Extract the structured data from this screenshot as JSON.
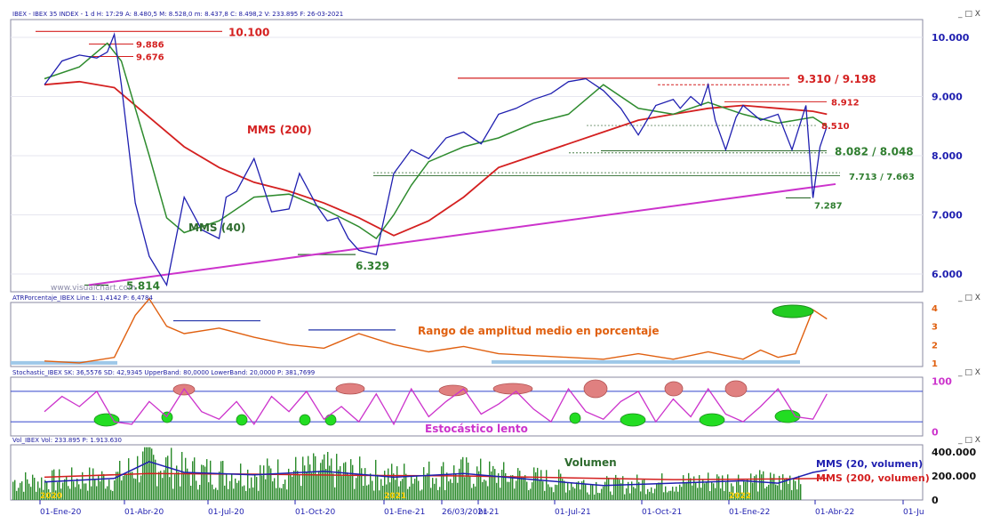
{
  "window": {
    "main_header": "IBEX - IBEX 35 INDEX - 1 d H: 17:29 A: 8.480,5 M: 8.528,0 m: 8.437,8 C: 8.498,2 V: 233.895 F: 26-03-2021",
    "atr_header": "ATRPorcentaje_IBEX Line 1: 1,4142 P: 6,4784",
    "stoch_header": "Stochastic_IBEX SK: 36,5576 SD: 42,9345 UpperBand: 80,0000 LowerBand: 20,0000 P: 381,7699",
    "vol_header": "Vol_IBEX Vol: 233.895 P: 1.913.630",
    "controls": "_ □ X",
    "watermark": "www.visualchart.com",
    "cursor_date": "26/03/2021"
  },
  "colors": {
    "price": "#1f1fb0",
    "mms200": "#d42020",
    "mms40": "#2e8b2e",
    "trend": "#cc33cc",
    "annot_red": "#d42020",
    "annot_green": "#2e7d2e",
    "axis": "#1f1fb0",
    "atr": "#e06010",
    "stoch": "#cc33cc",
    "volume": "#2a8a2a"
  },
  "chart_data": [
    {
      "type": "line",
      "title": "IBEX 35 INDEX (1 d)",
      "x_ticks": [
        "01-Ene-20",
        "01-Abr-20",
        "01-Jul-20",
        "01-Oct-20",
        "01-Ene-21",
        "26/03/2021",
        "br-21",
        "01-Jul-21",
        "01-Oct-21",
        "01-Ene-22",
        "01-Abr-22",
        "01-Ju"
      ],
      "year_marks": [
        "2020",
        "2021",
        "2022"
      ],
      "ylim": [
        5700,
        10300
      ],
      "y_ticks": [
        "6.000",
        "7.000",
        "8.000",
        "9.000",
        "10.000"
      ],
      "series": [
        {
          "name": "IBEX",
          "x": [
            0,
            0.05,
            0.1,
            0.15,
            0.18,
            0.2,
            0.22,
            0.26,
            0.3,
            0.35,
            0.4,
            0.45,
            0.5,
            0.52,
            0.55,
            0.6,
            0.65,
            0.7,
            0.73,
            0.78,
            0.81,
            0.84,
            0.87,
            0.9,
            0.95,
            1.0,
            1.05,
            1.1,
            1.15,
            1.2,
            1.25,
            1.3,
            1.35,
            1.4,
            1.45,
            1.5,
            1.55,
            1.6,
            1.65,
            1.7,
            1.75,
            1.8,
            1.82,
            1.85,
            1.88,
            1.9,
            1.92,
            1.95,
            1.98,
            2.0,
            2.05,
            2.1,
            2.14,
            2.18,
            2.2,
            2.22,
            2.24
          ],
          "values": [
            9200,
            9600,
            9700,
            9650,
            9750,
            10050,
            9200,
            7200,
            6300,
            5814,
            7300,
            6750,
            6600,
            7300,
            7400,
            7950,
            7050,
            7100,
            7700,
            7150,
            6900,
            6950,
            6600,
            6400,
            6329,
            7700,
            8100,
            7950,
            8300,
            8400,
            8200,
            8700,
            8800,
            8950,
            9050,
            9250,
            9300,
            9100,
            8800,
            8350,
            8850,
            8950,
            8800,
            9000,
            8850,
            9200,
            8600,
            8100,
            8650,
            8850,
            8600,
            8700,
            8100,
            8850,
            7287,
            8150,
            8498
          ]
        },
        {
          "name": "MMS (200)",
          "x": [
            0,
            0.1,
            0.2,
            0.3,
            0.4,
            0.5,
            0.6,
            0.7,
            0.8,
            0.9,
            1.0,
            1.1,
            1.2,
            1.3,
            1.4,
            1.5,
            1.6,
            1.7,
            1.8,
            1.9,
            2.0,
            2.1,
            2.2,
            2.24
          ],
          "values": [
            9200,
            9250,
            9150,
            8650,
            8150,
            7800,
            7550,
            7400,
            7200,
            6950,
            6650,
            6900,
            7300,
            7800,
            8000,
            8200,
            8400,
            8600,
            8700,
            8800,
            8850,
            8800,
            8750,
            8700
          ]
        },
        {
          "name": "MMS (40)",
          "x": [
            0,
            0.1,
            0.18,
            0.22,
            0.3,
            0.35,
            0.4,
            0.5,
            0.6,
            0.7,
            0.8,
            0.9,
            0.95,
            1.0,
            1.05,
            1.1,
            1.2,
            1.3,
            1.4,
            1.5,
            1.6,
            1.7,
            1.8,
            1.9,
            2.0,
            2.1,
            2.2,
            2.24
          ],
          "values": [
            9300,
            9500,
            9900,
            9600,
            8000,
            6950,
            6700,
            6900,
            7300,
            7350,
            7100,
            6800,
            6600,
            7000,
            7500,
            7900,
            8150,
            8300,
            8550,
            8700,
            9200,
            8800,
            8700,
            8900,
            8700,
            8550,
            8650,
            8500
          ]
        }
      ],
      "annotations": {
        "r1": "10.100",
        "r2": "9.886",
        "r3": "9.676",
        "r4": "9.310 / 9.198",
        "r5": "8.912",
        "r6": "8.510",
        "g1": "8.082 / 8.048",
        "g2": "7.713 / 7.663",
        "g3": "7.287",
        "g4": "6.329",
        "g5": "5.814",
        "label_mms200": "MMS (200)",
        "label_mms40": "MMS (40)"
      }
    },
    {
      "type": "line",
      "title": "ATRPorcentaje_IBEX",
      "ylim": [
        0.8,
        4.3
      ],
      "y_ticks": [
        "1",
        "2",
        "3",
        "4"
      ],
      "label": "Rango de amplitud medio en porcentaje",
      "series": [
        {
          "name": "ATR %",
          "x": [
            0,
            0.1,
            0.2,
            0.26,
            0.3,
            0.35,
            0.4,
            0.5,
            0.6,
            0.7,
            0.8,
            0.9,
            1.0,
            1.1,
            1.2,
            1.3,
            1.4,
            1.5,
            1.6,
            1.7,
            1.8,
            1.9,
            2.0,
            2.05,
            2.1,
            2.15,
            2.2,
            2.24
          ],
          "values": [
            1.1,
            1.0,
            1.3,
            3.6,
            4.5,
            3.0,
            2.6,
            2.9,
            2.4,
            2.0,
            1.8,
            2.6,
            2.0,
            1.6,
            1.9,
            1.5,
            1.4,
            1.3,
            1.2,
            1.5,
            1.2,
            1.6,
            1.2,
            1.7,
            1.3,
            1.5,
            3.9,
            3.4
          ]
        }
      ]
    },
    {
      "type": "line",
      "title": "Stochastic_IBEX",
      "ylim": [
        -8,
        108
      ],
      "y_ticks": [
        "0",
        "100"
      ],
      "bands": [
        20,
        80
      ],
      "label": "Estocástico lento",
      "series": [
        {
          "name": "SK",
          "x": [
            0,
            0.05,
            0.1,
            0.15,
            0.2,
            0.25,
            0.3,
            0.35,
            0.4,
            0.45,
            0.5,
            0.55,
            0.6,
            0.65,
            0.7,
            0.75,
            0.8,
            0.85,
            0.9,
            0.95,
            1.0,
            1.05,
            1.1,
            1.15,
            1.2,
            1.25,
            1.3,
            1.35,
            1.4,
            1.45,
            1.5,
            1.55,
            1.6,
            1.65,
            1.7,
            1.75,
            1.8,
            1.85,
            1.9,
            1.95,
            2.0,
            2.05,
            2.1,
            2.15,
            2.2,
            2.24
          ],
          "values": [
            40,
            70,
            50,
            80,
            20,
            15,
            60,
            30,
            85,
            40,
            25,
            60,
            15,
            70,
            40,
            80,
            25,
            50,
            20,
            75,
            15,
            85,
            30,
            60,
            85,
            35,
            55,
            80,
            45,
            20,
            85,
            40,
            25,
            60,
            80,
            20,
            65,
            30,
            85,
            35,
            20,
            50,
            85,
            30,
            25,
            75
          ]
        }
      ]
    },
    {
      "type": "bar",
      "title": "Vol_IBEX",
      "ylim": [
        0,
        460000
      ],
      "y_ticks": [
        "0",
        "200.000",
        "400.000"
      ],
      "label": "Volumen",
      "legend": [
        "MMS (20, volumen)",
        "MMS (200, volumen)"
      ],
      "series": [
        {
          "name": "MMS (20, volumen)",
          "x": [
            0,
            0.2,
            0.3,
            0.4,
            0.6,
            0.8,
            1.0,
            1.2,
            1.4,
            1.6,
            1.8,
            2.0,
            2.1,
            2.2,
            2.24
          ],
          "values": [
            150000,
            180000,
            320000,
            230000,
            210000,
            240000,
            190000,
            220000,
            170000,
            120000,
            140000,
            160000,
            140000,
            230000,
            250000
          ]
        },
        {
          "name": "MMS (200, volumen)",
          "x": [
            0,
            0.3,
            0.6,
            0.9,
            1.2,
            1.5,
            1.8,
            2.1,
            2.24
          ],
          "values": [
            190000,
            220000,
            215000,
            205000,
            200000,
            185000,
            170000,
            175000,
            180000
          ]
        }
      ]
    }
  ]
}
